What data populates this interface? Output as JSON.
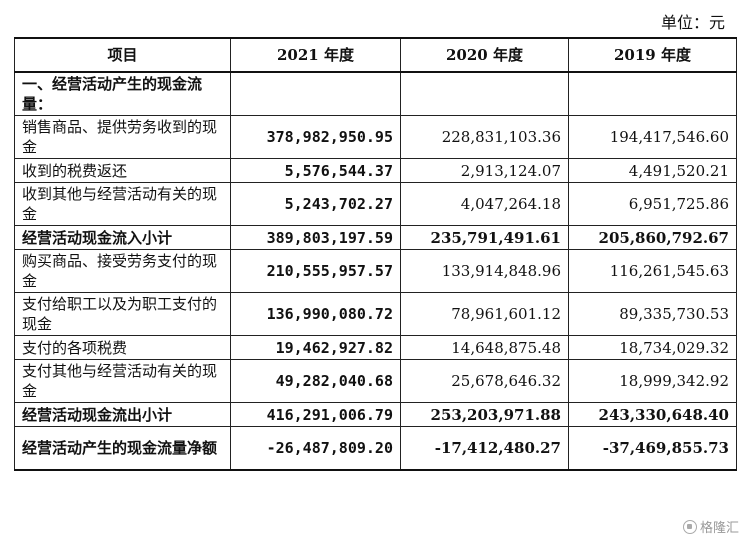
{
  "unit_label": "单位：元",
  "headers": [
    "项目",
    "2021 年度",
    "2020 年度",
    "2019 年度"
  ],
  "section_title": "一、经营活动产生的现金流量：",
  "rows": [
    {
      "label": "销售商品、提供劳务收到的现金",
      "v2021": "378,982,950.95",
      "v2020": "228,831,103.36",
      "v2019": "194,417,546.60",
      "bold": false
    },
    {
      "label": "收到的税费返还",
      "v2021": "5,576,544.37",
      "v2020": "2,913,124.07",
      "v2019": "4,491,520.21",
      "bold": false
    },
    {
      "label": "收到其他与经营活动有关的现金",
      "v2021": "5,243,702.27",
      "v2020": "4,047,264.18",
      "v2019": "6,951,725.86",
      "bold": false
    },
    {
      "label": "经营活动现金流入小计",
      "v2021": "389,803,197.59",
      "v2020": "235,791,491.61",
      "v2019": "205,860,792.67",
      "bold": true
    },
    {
      "label": "购买商品、接受劳务支付的现金",
      "v2021": "210,555,957.57",
      "v2020": "133,914,848.96",
      "v2019": "116,261,545.63",
      "bold": false
    },
    {
      "label": "支付给职工以及为职工支付的现金",
      "v2021": "136,990,080.72",
      "v2020": "78,961,601.12",
      "v2019": "89,335,730.53",
      "bold": false
    },
    {
      "label": "支付的各项税费",
      "v2021": "19,462,927.82",
      "v2020": "14,648,875.48",
      "v2019": "18,734,029.32",
      "bold": false
    },
    {
      "label": "支付其他与经营活动有关的现金",
      "v2021": "49,282,040.68",
      "v2020": "25,678,646.32",
      "v2019": "18,999,342.92",
      "bold": false
    },
    {
      "label": "经营活动现金流出小计",
      "v2021": "416,291,006.79",
      "v2020": "253,203,971.88",
      "v2019": "243,330,648.40",
      "bold": true
    },
    {
      "label": "经营活动产生的现金流量净额",
      "v2021": "-26,487,809.20",
      "v2020": "-17,412,480.27",
      "v2019": "-37,469,855.73",
      "bold": true
    }
  ],
  "watermark": "格隆汇"
}
